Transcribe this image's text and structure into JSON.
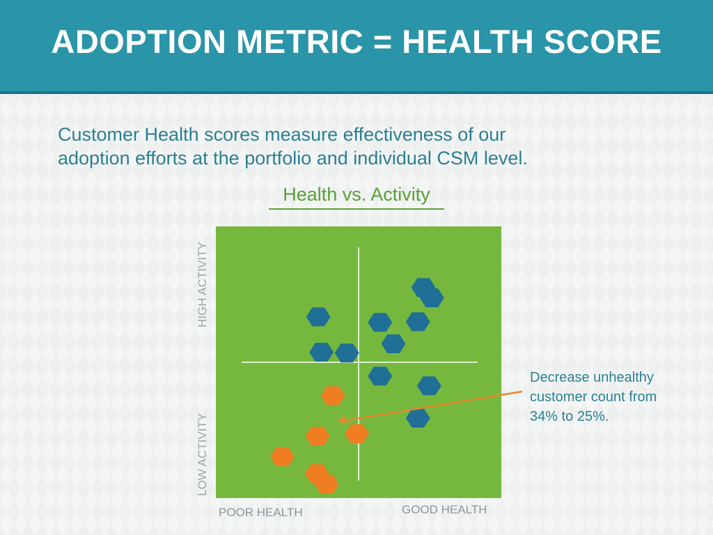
{
  "header": {
    "title": "ADOPTION METRIC = HEALTH SCORE"
  },
  "intro": {
    "line1": "Customer Health scores measure effectiveness of our",
    "line2": "adoption efforts at the portfolio and individual CSM level."
  },
  "colors": {
    "header_bg": "#2a94a8",
    "plot_bg": "#76b83e",
    "healthy": "#1f6f97",
    "unhealthy": "#ef7d22",
    "arrow": "#e8872b",
    "text_teal": "#2a7f92",
    "title_green": "#5aa036"
  },
  "chart_data": {
    "type": "scatter",
    "title": "Health vs. Activity",
    "xlabel_left": "POOR HEALTH",
    "xlabel_right": "GOOD HEALTH",
    "ylabel_top": "HIGH ACTIVITY",
    "ylabel_bottom": "LOW ACTIVITY",
    "xlim": [
      0,
      100
    ],
    "ylim": [
      0,
      100
    ],
    "grid": false,
    "marker": "hexagon",
    "series": [
      {
        "color": "#1f6f97",
        "points": [
          {
            "x": 72.7,
            "y": 77.5
          },
          {
            "x": 75.7,
            "y": 73.7
          },
          {
            "x": 35.9,
            "y": 66.7
          },
          {
            "x": 57.5,
            "y": 64.7
          },
          {
            "x": 70.8,
            "y": 64.9
          },
          {
            "x": 62.2,
            "y": 56.8
          },
          {
            "x": 37.0,
            "y": 53.7
          },
          {
            "x": 45.9,
            "y": 53.4
          },
          {
            "x": 57.5,
            "y": 44.9
          },
          {
            "x": 74.7,
            "y": 41.3
          },
          {
            "x": 70.8,
            "y": 29.4
          }
        ]
      },
      {
        "color": "#ef7d22",
        "points": [
          {
            "x": 41.0,
            "y": 37.7
          },
          {
            "x": 49.4,
            "y": 23.7
          },
          {
            "x": 35.6,
            "y": 22.8
          },
          {
            "x": 23.3,
            "y": 15.2
          },
          {
            "x": 35.4,
            "y": 9.0
          },
          {
            "x": 38.8,
            "y": 5.1
          }
        ]
      }
    ],
    "annotation": {
      "lines": [
        "Decrease unhealthy",
        "customer count from",
        "34% to 25%."
      ],
      "points_to": {
        "x": 42.5,
        "y": 28.3
      }
    }
  }
}
